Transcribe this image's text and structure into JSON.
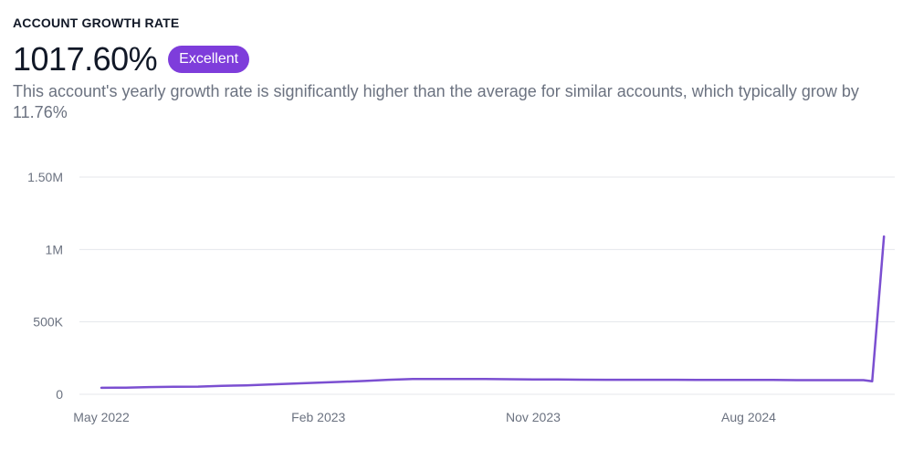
{
  "header": {
    "title": "ACCOUNT GROWTH RATE",
    "value": "1017.60%",
    "badge": "Excellent",
    "description": "This account's yearly growth rate is significantly higher than the average for similar accounts, which typically grow by 11.76%"
  },
  "colors": {
    "accent": "#7e3ddb",
    "line": "#7b4fd1",
    "grid": "#e5e7eb",
    "muted_text": "#6b7280"
  },
  "chart_data": {
    "type": "line",
    "title": "",
    "xlabel": "",
    "ylabel": "",
    "ylim": [
      0,
      1500000
    ],
    "y_ticks": [
      {
        "value": 0,
        "label": "0"
      },
      {
        "value": 500000,
        "label": "500K"
      },
      {
        "value": 1000000,
        "label": "1M"
      },
      {
        "value": 1500000,
        "label": "1.50M"
      }
    ],
    "x_ticks": [
      {
        "date": "2022-05-01",
        "label": "May 2022"
      },
      {
        "date": "2023-02-01",
        "label": "Feb 2023"
      },
      {
        "date": "2023-11-01",
        "label": "Nov 2023"
      },
      {
        "date": "2024-08-01",
        "label": "Aug 2024"
      }
    ],
    "xlim": [
      "2022-05-01",
      "2025-01-20"
    ],
    "grid": true,
    "series": [
      {
        "points": [
          {
            "x": "2022-05-01",
            "y": 45000
          },
          {
            "x": "2022-06-01",
            "y": 46000
          },
          {
            "x": "2022-07-01",
            "y": 50000
          },
          {
            "x": "2022-08-01",
            "y": 52000
          },
          {
            "x": "2022-09-01",
            "y": 53000
          },
          {
            "x": "2022-10-01",
            "y": 58000
          },
          {
            "x": "2022-11-01",
            "y": 62000
          },
          {
            "x": "2022-12-01",
            "y": 68000
          },
          {
            "x": "2023-01-01",
            "y": 74000
          },
          {
            "x": "2023-02-01",
            "y": 80000
          },
          {
            "x": "2023-03-01",
            "y": 86000
          },
          {
            "x": "2023-04-01",
            "y": 92000
          },
          {
            "x": "2023-05-01",
            "y": 100000
          },
          {
            "x": "2023-06-01",
            "y": 105000
          },
          {
            "x": "2023-07-01",
            "y": 106000
          },
          {
            "x": "2023-08-01",
            "y": 106000
          },
          {
            "x": "2023-09-01",
            "y": 105000
          },
          {
            "x": "2023-10-01",
            "y": 104000
          },
          {
            "x": "2023-11-01",
            "y": 103000
          },
          {
            "x": "2023-12-01",
            "y": 102000
          },
          {
            "x": "2024-01-01",
            "y": 101000
          },
          {
            "x": "2024-02-01",
            "y": 100000
          },
          {
            "x": "2024-03-01",
            "y": 100000
          },
          {
            "x": "2024-04-01",
            "y": 100000
          },
          {
            "x": "2024-05-01",
            "y": 100000
          },
          {
            "x": "2024-06-01",
            "y": 99000
          },
          {
            "x": "2024-07-01",
            "y": 99000
          },
          {
            "x": "2024-08-01",
            "y": 99000
          },
          {
            "x": "2024-09-01",
            "y": 99000
          },
          {
            "x": "2024-10-01",
            "y": 98000
          },
          {
            "x": "2024-11-01",
            "y": 98000
          },
          {
            "x": "2024-12-01",
            "y": 98000
          },
          {
            "x": "2024-12-25",
            "y": 98000
          },
          {
            "x": "2025-01-05",
            "y": 90000
          },
          {
            "x": "2025-01-20",
            "y": 1090000
          }
        ]
      }
    ]
  }
}
